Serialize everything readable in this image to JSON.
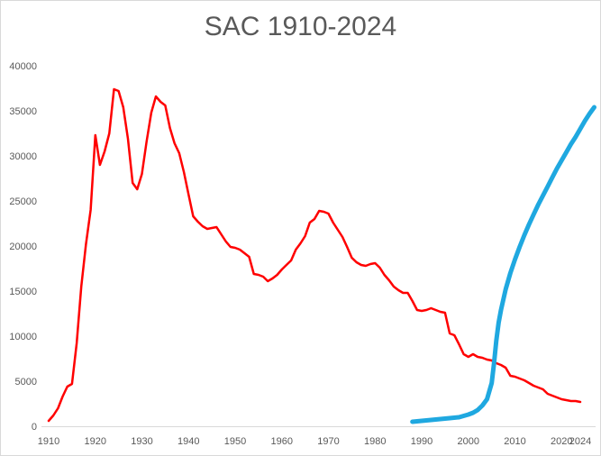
{
  "chart_data": {
    "type": "line",
    "title": "SAC 1910-2024",
    "xlabel": "",
    "ylabel": "",
    "xlim": [
      1910,
      2024
    ],
    "ylim": [
      0,
      40000
    ],
    "grid": false,
    "legend": "none",
    "x_ticks": [
      "1910",
      "1920",
      "1930",
      "1940",
      "1950",
      "1960",
      "1970",
      "1980",
      "1990",
      "2000",
      "2010",
      "2020",
      "2024"
    ],
    "y_ticks": [
      "0",
      "5000",
      "10000",
      "15000",
      "20000",
      "25000",
      "30000",
      "35000",
      "40000"
    ],
    "series": [
      {
        "color": "#ff0000",
        "x": [
          1910,
          1911,
          1912,
          1913,
          1914,
          1915,
          1916,
          1917,
          1918,
          1919,
          1920,
          1921,
          1922,
          1923,
          1924,
          1925,
          1926,
          1927,
          1928,
          1929,
          1930,
          1931,
          1932,
          1933,
          1934,
          1935,
          1936,
          1937,
          1938,
          1939,
          1940,
          1941,
          1942,
          1943,
          1944,
          1945,
          1946,
          1947,
          1948,
          1949,
          1950,
          1951,
          1952,
          1953,
          1954,
          1955,
          1956,
          1957,
          1958,
          1959,
          1960,
          1961,
          1962,
          1963,
          1964,
          1965,
          1966,
          1967,
          1968,
          1969,
          1970,
          1971,
          1972,
          1973,
          1974,
          1975,
          1976,
          1977,
          1978,
          1979,
          1980,
          1981,
          1982,
          1983,
          1984,
          1985,
          1986,
          1987,
          1988,
          1989,
          1990,
          1991,
          1992,
          1993,
          1994,
          1995,
          1996,
          1997,
          1998,
          1999,
          2000,
          2001,
          2002,
          2003,
          2004,
          2005,
          2006,
          2007,
          2008,
          2009,
          2010,
          2011,
          2012,
          2013,
          2014,
          2015,
          2016,
          2017,
          2018,
          2019,
          2020,
          2021,
          2022,
          2023,
          2024
        ],
        "values": [
          600,
          1200,
          2000,
          3300,
          4400,
          4700,
          9200,
          15500,
          20200,
          24000,
          32300,
          29000,
          30500,
          32500,
          37400,
          37200,
          35400,
          31900,
          27000,
          26300,
          28000,
          31600,
          34800,
          36600,
          36000,
          35600,
          33100,
          31400,
          30300,
          28200,
          25700,
          23300,
          22700,
          22200,
          21900,
          22000,
          22100,
          21300,
          20500,
          19900,
          19800,
          19600,
          19200,
          18800,
          16900,
          16800,
          16600,
          16100,
          16400,
          16800,
          17400,
          17900,
          18400,
          19600,
          20300,
          21100,
          22600,
          23000,
          23900,
          23800,
          23600,
          22600,
          21800,
          21000,
          19900,
          18700,
          18200,
          17900,
          17800,
          18000,
          18100,
          17600,
          16800,
          16200,
          15500,
          15100,
          14800,
          14800,
          13900,
          12900,
          12800,
          12900,
          13100,
          12900,
          12700,
          12600,
          10300,
          10100,
          9100,
          8000,
          7700,
          8000,
          7700,
          7600,
          7400,
          7300,
          7000,
          6800,
          6500,
          5600,
          5500,
          5300,
          5100,
          4800,
          4500,
          4300,
          4100,
          3600,
          3400,
          3200,
          3000,
          2900,
          2800,
          2800,
          2700
        ]
      },
      {
        "color": "#1fa8e0",
        "x": [
          1988,
          1990,
          1992,
          1994,
          1996,
          1998,
          2000,
          2001,
          2002,
          2003,
          2004,
          2005,
          2005.5,
          2006,
          2006.5,
          2007,
          2008,
          2009,
          2010,
          2011,
          2012,
          2013,
          2014,
          2015,
          2016,
          2017,
          2018,
          2019,
          2020,
          2021,
          2022,
          2023,
          2024,
          2025,
          2026,
          2027
        ],
        "values": [
          500,
          600,
          700,
          800,
          900,
          1000,
          1300,
          1500,
          1800,
          2300,
          3000,
          4800,
          7000,
          9500,
          11500,
          12900,
          15200,
          17000,
          18500,
          19900,
          21200,
          22400,
          23500,
          24600,
          25600,
          26600,
          27600,
          28600,
          29500,
          30400,
          31300,
          32100,
          33000,
          33900,
          34700,
          35400
        ]
      }
    ]
  }
}
